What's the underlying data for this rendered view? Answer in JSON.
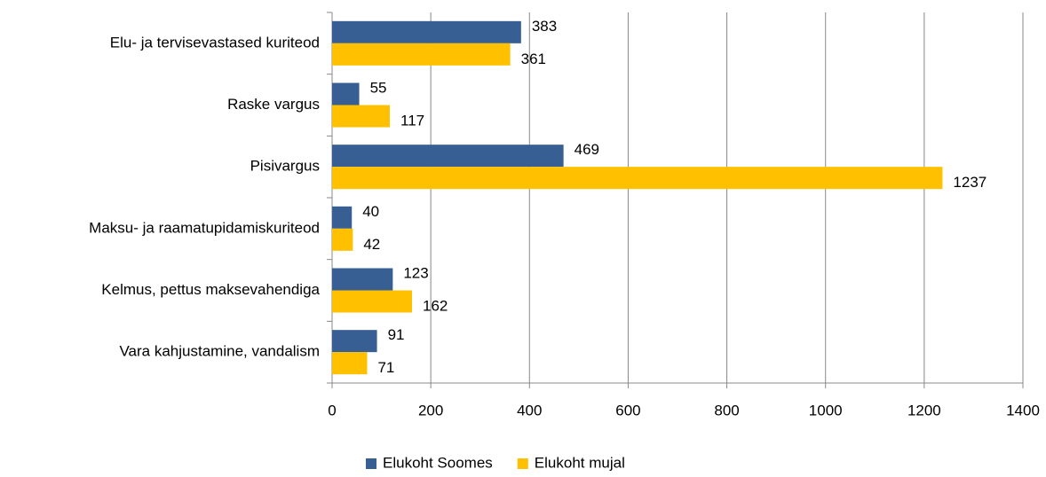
{
  "chart_data": {
    "type": "bar",
    "orientation": "horizontal",
    "categories": [
      "Elu- ja tervisevastased kuriteod",
      "Raske vargus",
      "Pisivargus",
      "Maksu- ja raamatupidamiskuriteod",
      "Kelmus, pettus maksevahendiga",
      "Vara kahjustamine, vandalism"
    ],
    "series": [
      {
        "name": "Elukoht Soomes",
        "color": "#375f93",
        "values": [
          383,
          55,
          469,
          40,
          123,
          91
        ]
      },
      {
        "name": "Elukoht mujal",
        "color": "#ffc000",
        "values": [
          361,
          117,
          1237,
          42,
          162,
          71
        ]
      }
    ],
    "xlim": [
      0,
      1400
    ],
    "xticks": [
      0,
      200,
      400,
      600,
      800,
      1000,
      1200,
      1400
    ],
    "grid": true,
    "legend": "bottom"
  }
}
